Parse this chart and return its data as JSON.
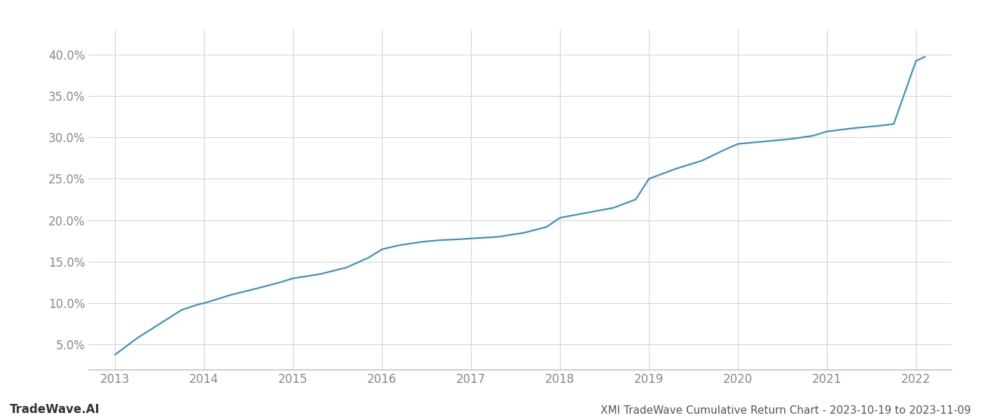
{
  "title_bottom": "XMI TradeWave Cumulative Return Chart - 2023-10-19 to 2023-11-09",
  "watermark": "TradeWave.AI",
  "line_color": "#3a8fc4",
  "background_color": "#ffffff",
  "grid_color": "#d0d0d0",
  "x_values": [
    2013.0,
    2013.25,
    2013.5,
    2013.75,
    2013.95,
    2014.0,
    2014.3,
    2014.6,
    2014.85,
    2015.0,
    2015.3,
    2015.6,
    2015.85,
    2016.0,
    2016.2,
    2016.45,
    2016.65,
    2016.85,
    2017.0,
    2017.3,
    2017.6,
    2017.85,
    2018.0,
    2018.3,
    2018.6,
    2018.85,
    2019.0,
    2019.3,
    2019.6,
    2019.85,
    2020.0,
    2020.3,
    2020.6,
    2020.85,
    2021.0,
    2021.3,
    2021.6,
    2021.75,
    2022.0,
    2022.1
  ],
  "y_values": [
    3.8,
    5.8,
    7.5,
    9.2,
    9.9,
    10.0,
    11.0,
    11.8,
    12.5,
    13.0,
    13.5,
    14.3,
    15.5,
    16.5,
    17.0,
    17.4,
    17.6,
    17.7,
    17.8,
    18.0,
    18.5,
    19.2,
    20.3,
    20.9,
    21.5,
    22.5,
    25.0,
    26.2,
    27.2,
    28.5,
    29.2,
    29.5,
    29.8,
    30.2,
    30.7,
    31.1,
    31.4,
    31.6,
    39.2,
    39.7
  ],
  "xlim": [
    2012.7,
    2022.4
  ],
  "ylim": [
    2.0,
    43.0
  ],
  "yticks": [
    5.0,
    10.0,
    15.0,
    20.0,
    25.0,
    30.0,
    35.0,
    40.0
  ],
  "xticks": [
    2013,
    2014,
    2015,
    2016,
    2017,
    2018,
    2019,
    2020,
    2021,
    2022
  ],
  "tick_color": "#888888",
  "title_fontsize": 11,
  "tick_fontsize": 12,
  "watermark_fontsize": 12,
  "line_width": 1.6
}
